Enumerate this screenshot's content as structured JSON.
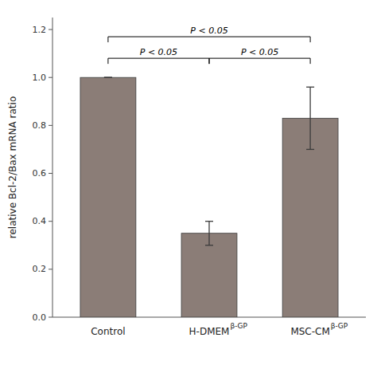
{
  "chart_data": {
    "type": "bar",
    "categories": [
      "Control",
      "H-DMEM",
      "MSC-CM"
    ],
    "values": [
      1.0,
      0.35,
      0.83
    ],
    "errors": [
      0.0,
      0.05,
      0.13
    ],
    "color": "#8B7D77",
    "ylabel": "relative Bcl-2/Bax mRNA ratio",
    "ylim": [
      0,
      1.25
    ],
    "yticks": [
      {
        "value": 0,
        "label": "0.0"
      },
      0.2,
      0.4,
      0.6,
      0.8,
      {
        "value": 1.0,
        "label": "1.0"
      },
      1.2
    ],
    "grid": false,
    "annotations": [
      {
        "text": "β-GP",
        "category": "H-DMEM"
      },
      {
        "text": "β-GP",
        "category": "MSC-CM"
      },
      {
        "text": "P < 0.05",
        "from": "Control",
        "to": "H-DMEM",
        "y": 1.08
      },
      {
        "text": "P < 0.05",
        "from": "H-DMEM",
        "to": "MSC-CM",
        "y": 1.08
      },
      {
        "text": "P < 0.05",
        "from": "Control",
        "to": "MSC-CM",
        "y": 1.17
      }
    ]
  }
}
